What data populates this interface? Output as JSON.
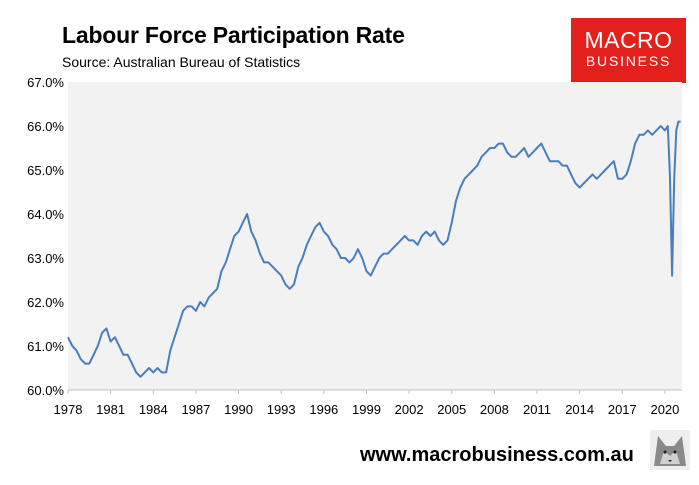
{
  "header": {
    "title": "Labour Force Participation Rate",
    "subtitle": "Source: Australian Bureau of Statistics"
  },
  "logo": {
    "line1": "MACRO",
    "line2": "BUSINESS"
  },
  "footer": {
    "url": "www.macrobusiness.com.au"
  },
  "colors": {
    "line": "#4a7ebb",
    "plot_bg": "#f2f2f2",
    "logo_red": "#e3201b"
  },
  "chart_data": {
    "type": "line",
    "title": "Labour Force Participation Rate",
    "xlabel": "",
    "ylabel": "",
    "xlim": [
      1978.0,
      2021.2
    ],
    "ylim": [
      60.0,
      67.0
    ],
    "grid": false,
    "yticks": [
      "60.0%",
      "61.0%",
      "62.0%",
      "63.0%",
      "64.0%",
      "65.0%",
      "66.0%",
      "67.0%"
    ],
    "xticks": [
      "1978",
      "1981",
      "1984",
      "1987",
      "1990",
      "1993",
      "1996",
      "1999",
      "2002",
      "2005",
      "2008",
      "2011",
      "2014",
      "2017",
      "2020"
    ],
    "series": [
      {
        "x": [
          1978.0,
          1978.3,
          1978.6,
          1978.9,
          1979.2,
          1979.5,
          1979.8,
          1980.1,
          1980.4,
          1980.7,
          1981.0,
          1981.3,
          1981.6,
          1981.9,
          1982.2,
          1982.5,
          1982.8,
          1983.1,
          1983.4,
          1983.7,
          1984.0,
          1984.3,
          1984.6,
          1984.9,
          1985.2,
          1985.5,
          1985.8,
          1986.1,
          1986.4,
          1986.7,
          1987.0,
          1987.3,
          1987.6,
          1987.9,
          1988.2,
          1988.5,
          1988.8,
          1989.1,
          1989.4,
          1989.7,
          1990.0,
          1990.3,
          1990.6,
          1990.9,
          1991.2,
          1991.5,
          1991.8,
          1992.1,
          1992.4,
          1992.7,
          1993.0,
          1993.3,
          1993.6,
          1993.9,
          1994.2,
          1994.5,
          1994.8,
          1995.1,
          1995.4,
          1995.7,
          1996.0,
          1996.3,
          1996.6,
          1996.9,
          1997.2,
          1997.5,
          1997.8,
          1998.1,
          1998.4,
          1998.7,
          1999.0,
          1999.3,
          1999.6,
          1999.9,
          2000.2,
          2000.5,
          2000.8,
          2001.1,
          2001.4,
          2001.7,
          2002.0,
          2002.3,
          2002.6,
          2002.9,
          2003.2,
          2003.5,
          2003.8,
          2004.1,
          2004.4,
          2004.7,
          2005.0,
          2005.3,
          2005.6,
          2005.9,
          2006.2,
          2006.5,
          2006.8,
          2007.1,
          2007.4,
          2007.7,
          2008.0,
          2008.3,
          2008.6,
          2008.9,
          2009.2,
          2009.5,
          2009.8,
          2010.1,
          2010.4,
          2010.7,
          2011.0,
          2011.3,
          2011.6,
          2011.9,
          2012.2,
          2012.5,
          2012.8,
          2013.1,
          2013.4,
          2013.7,
          2014.0,
          2014.3,
          2014.6,
          2014.9,
          2015.2,
          2015.5,
          2015.8,
          2016.1,
          2016.4,
          2016.7,
          2017.0,
          2017.3,
          2017.6,
          2017.9,
          2018.2,
          2018.5,
          2018.8,
          2019.1,
          2019.4,
          2019.7,
          2020.0,
          2020.2,
          2020.35,
          2020.5,
          2020.65,
          2020.8,
          2020.95,
          2021.1
        ],
        "values": [
          61.2,
          61.0,
          60.9,
          60.7,
          60.6,
          60.6,
          60.8,
          61.0,
          61.3,
          61.4,
          61.1,
          61.2,
          61.0,
          60.8,
          60.8,
          60.6,
          60.4,
          60.3,
          60.4,
          60.5,
          60.4,
          60.5,
          60.4,
          60.4,
          60.9,
          61.2,
          61.5,
          61.8,
          61.9,
          61.9,
          61.8,
          62.0,
          61.9,
          62.1,
          62.2,
          62.3,
          62.7,
          62.9,
          63.2,
          63.5,
          63.6,
          63.8,
          64.0,
          63.6,
          63.4,
          63.1,
          62.9,
          62.9,
          62.8,
          62.7,
          62.6,
          62.4,
          62.3,
          62.4,
          62.8,
          63.0,
          63.3,
          63.5,
          63.7,
          63.8,
          63.6,
          63.5,
          63.3,
          63.2,
          63.0,
          63.0,
          62.9,
          63.0,
          63.2,
          63.0,
          62.7,
          62.6,
          62.8,
          63.0,
          63.1,
          63.1,
          63.2,
          63.3,
          63.4,
          63.5,
          63.4,
          63.4,
          63.3,
          63.5,
          63.6,
          63.5,
          63.6,
          63.4,
          63.3,
          63.4,
          63.8,
          64.3,
          64.6,
          64.8,
          64.9,
          65.0,
          65.1,
          65.3,
          65.4,
          65.5,
          65.5,
          65.6,
          65.6,
          65.4,
          65.3,
          65.3,
          65.4,
          65.5,
          65.3,
          65.4,
          65.5,
          65.6,
          65.4,
          65.2,
          65.2,
          65.2,
          65.1,
          65.1,
          64.9,
          64.7,
          64.6,
          64.7,
          64.8,
          64.9,
          64.8,
          64.9,
          65.0,
          65.1,
          65.2,
          64.8,
          64.8,
          64.9,
          65.2,
          65.6,
          65.8,
          65.8,
          65.9,
          65.8,
          65.9,
          66.0,
          65.9,
          66.0,
          64.9,
          62.6,
          64.8,
          65.9,
          66.1,
          66.1
        ]
      }
    ]
  }
}
